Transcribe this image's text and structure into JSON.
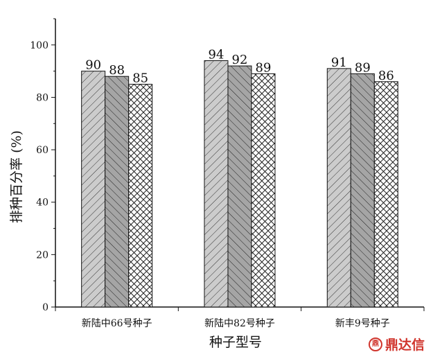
{
  "chart_data": {
    "type": "bar",
    "title": "",
    "xlabel": "种子型号",
    "ylabel": "排种百分率 (%)",
    "ylim": [
      0,
      110
    ],
    "yticks": [
      0,
      20,
      40,
      60,
      80,
      100
    ],
    "categories": [
      "新陆中66号种子",
      "新陆中82号种子",
      "新丰9号种子"
    ],
    "series": [
      {
        "name": "series-1",
        "values": [
          90,
          94,
          91
        ],
        "pattern": "diag-forward",
        "fill": "#cccccc"
      },
      {
        "name": "series-2",
        "values": [
          88,
          92,
          89
        ],
        "pattern": "diag-back",
        "fill": "#a5a5a5"
      },
      {
        "name": "series-3",
        "values": [
          85,
          89,
          86
        ],
        "pattern": "crosshatch",
        "fill": "#ffffff"
      }
    ],
    "data_labels": true,
    "grid": false,
    "legend": "none"
  },
  "watermark": {
    "icon": "dingdaxin-logo-icon",
    "icon_glyph": "鼎",
    "text": "鼎达信",
    "color": "#d0342c"
  }
}
